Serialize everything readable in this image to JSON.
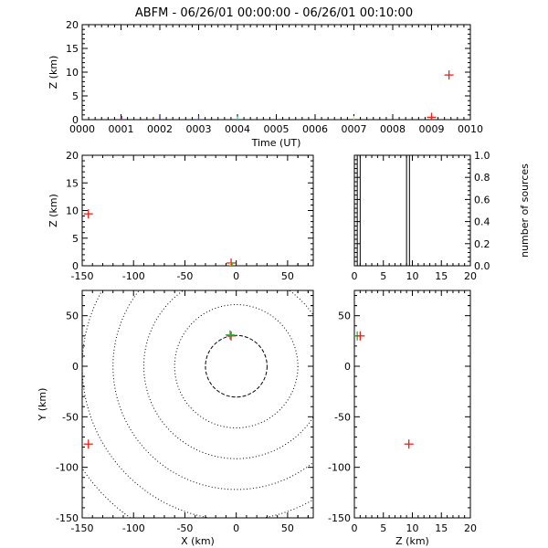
{
  "title": "ABFM - 06/26/01 00:00:00 - 06/26/01 00:10:00",
  "colors": {
    "axis": "#000000",
    "red": "#e8231b",
    "purple": "#3a0a9a",
    "blue": "#2a3de8",
    "cyan": "#1fd3c8",
    "yellow": "#f2e21e",
    "green": "#27b43b"
  },
  "chart_data": [
    {
      "id": "time-height",
      "type": "scatter",
      "xlabel": "Time (UT)",
      "ylabel": "Z (km)",
      "xlim": [
        0,
        10
      ],
      "ylim": [
        0,
        20
      ],
      "xticks": [
        "0000",
        "0001",
        "0002",
        "0003",
        "0004",
        "0005",
        "0006",
        "0007",
        "0008",
        "0009",
        "0010"
      ],
      "yticks": [
        "0",
        "5",
        "10",
        "15",
        "20"
      ],
      "points": [
        {
          "x": 1.0,
          "y": -0.3,
          "color": "#3a0a9a"
        },
        {
          "x": 1.02,
          "y": -0.2,
          "color": "#e8231b"
        },
        {
          "x": 2.0,
          "y": -0.3,
          "color": "#3a0a9a"
        },
        {
          "x": 3.0,
          "y": -0.1,
          "color": "#2a3de8"
        },
        {
          "x": 4.0,
          "y": -0.3,
          "color": "#1fd3c8"
        },
        {
          "x": 7.0,
          "y": -0.2,
          "color": "#f2e21e"
        },
        {
          "x": 9.0,
          "y": 0.5,
          "color": "#e8231b"
        },
        {
          "x": 9.0,
          "y": -0.3,
          "color": "#e8231b"
        },
        {
          "x": 9.45,
          "y": 9.4,
          "color": "#e8231b"
        }
      ]
    },
    {
      "id": "x-height",
      "type": "scatter",
      "xlabel": "",
      "ylabel": "Z (km)",
      "xlim": [
        -150,
        75
      ],
      "ylim": [
        0,
        20
      ],
      "xticks": [
        "-150",
        "-100",
        "-50",
        "0",
        "50"
      ],
      "yticks": [
        "0",
        "5",
        "10",
        "15",
        "20"
      ],
      "points": [
        {
          "x": -144,
          "y": 9.4,
          "color": "#e8231b"
        },
        {
          "x": -5,
          "y": 0.5,
          "color": "#e8231b"
        },
        {
          "x": -4,
          "y": -0.2,
          "color": "#27b43b"
        },
        {
          "x": -6,
          "y": -0.3,
          "color": "#f2e21e"
        }
      ]
    },
    {
      "id": "height-histogram",
      "type": "bar",
      "xlabel": "",
      "ylabel": "number of sources",
      "xlim": [
        0,
        20
      ],
      "ylim": [
        0,
        1
      ],
      "xticks": [
        "0",
        "5",
        "10",
        "15",
        "20"
      ],
      "yticks": [
        "0.0",
        "0.2",
        "0.4",
        "0.6",
        "0.8",
        "1.0"
      ],
      "bins": [
        {
          "from": 0.5,
          "to": 1.0,
          "value": 1
        },
        {
          "from": 9.0,
          "to": 9.5,
          "value": 1
        }
      ]
    },
    {
      "id": "plan-view",
      "type": "scatter",
      "xlabel": "X (km)",
      "ylabel": "Y (km)",
      "xlim": [
        -150,
        75
      ],
      "ylim": [
        -150,
        75
      ],
      "xticks": [
        "-150",
        "-100",
        "-50",
        "0",
        "50"
      ],
      "yticks": [
        "-150",
        "-100",
        "-50",
        "0",
        "50"
      ],
      "range_rings_km": [
        30,
        60,
        90,
        120,
        150,
        180
      ],
      "points": [
        {
          "x": -5,
          "y": 30,
          "color": "#e8231b"
        },
        {
          "x": -6,
          "y": 31,
          "color": "#27b43b"
        },
        {
          "x": -144,
          "y": -77,
          "color": "#e8231b"
        }
      ]
    },
    {
      "id": "height-y",
      "type": "scatter",
      "xlabel": "Z (km)",
      "ylabel": "",
      "xlim": [
        0,
        20
      ],
      "ylim": [
        -150,
        75
      ],
      "xticks": [
        "0",
        "5",
        "10",
        "15",
        "20"
      ],
      "yticks": [
        "-150",
        "-100",
        "-50",
        "0",
        "50"
      ],
      "points": [
        {
          "x": 0.5,
          "y": 30,
          "color": "#27b43b"
        },
        {
          "x": 1.0,
          "y": 30,
          "color": "#e8231b"
        },
        {
          "x": 9.4,
          "y": -77,
          "color": "#e8231b"
        }
      ]
    }
  ]
}
